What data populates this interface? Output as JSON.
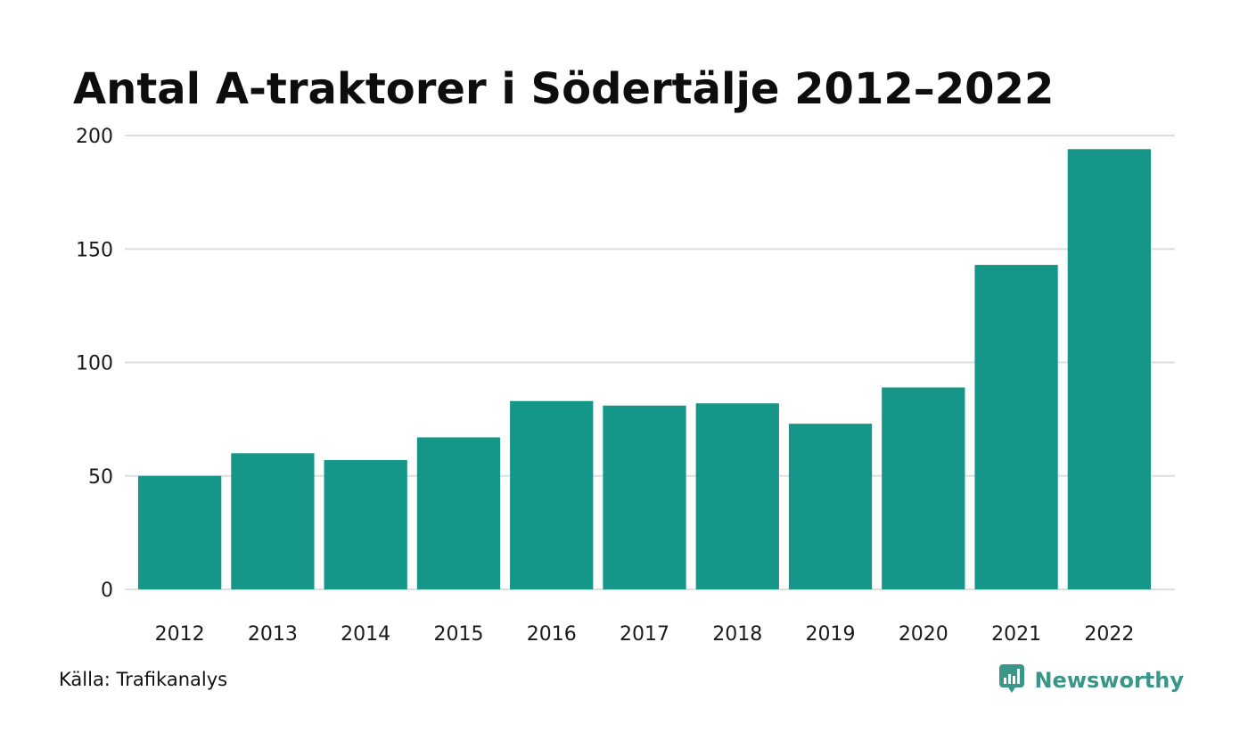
{
  "colors": {
    "bar": "#159688",
    "grid": "#dedede",
    "brand": "#3a9688",
    "text": "#111111"
  },
  "footer": {
    "source": "Källa: Trafikanalys",
    "brand_name": "Newsworthy",
    "brand_icon": "bar-chart-speech-bubble-icon"
  },
  "chart_data": {
    "type": "bar",
    "title": "Antal A-traktorer i Södertälje 2012–2022",
    "xlabel": "",
    "ylabel": "",
    "categories": [
      "2012",
      "2013",
      "2014",
      "2015",
      "2016",
      "2017",
      "2018",
      "2019",
      "2020",
      "2021",
      "2022"
    ],
    "values": [
      50,
      60,
      57,
      67,
      83,
      81,
      82,
      73,
      89,
      143,
      194
    ],
    "ylim": [
      0,
      200
    ],
    "yticks": [
      0,
      50,
      100,
      150,
      200
    ],
    "grid": true,
    "legend": "none"
  }
}
